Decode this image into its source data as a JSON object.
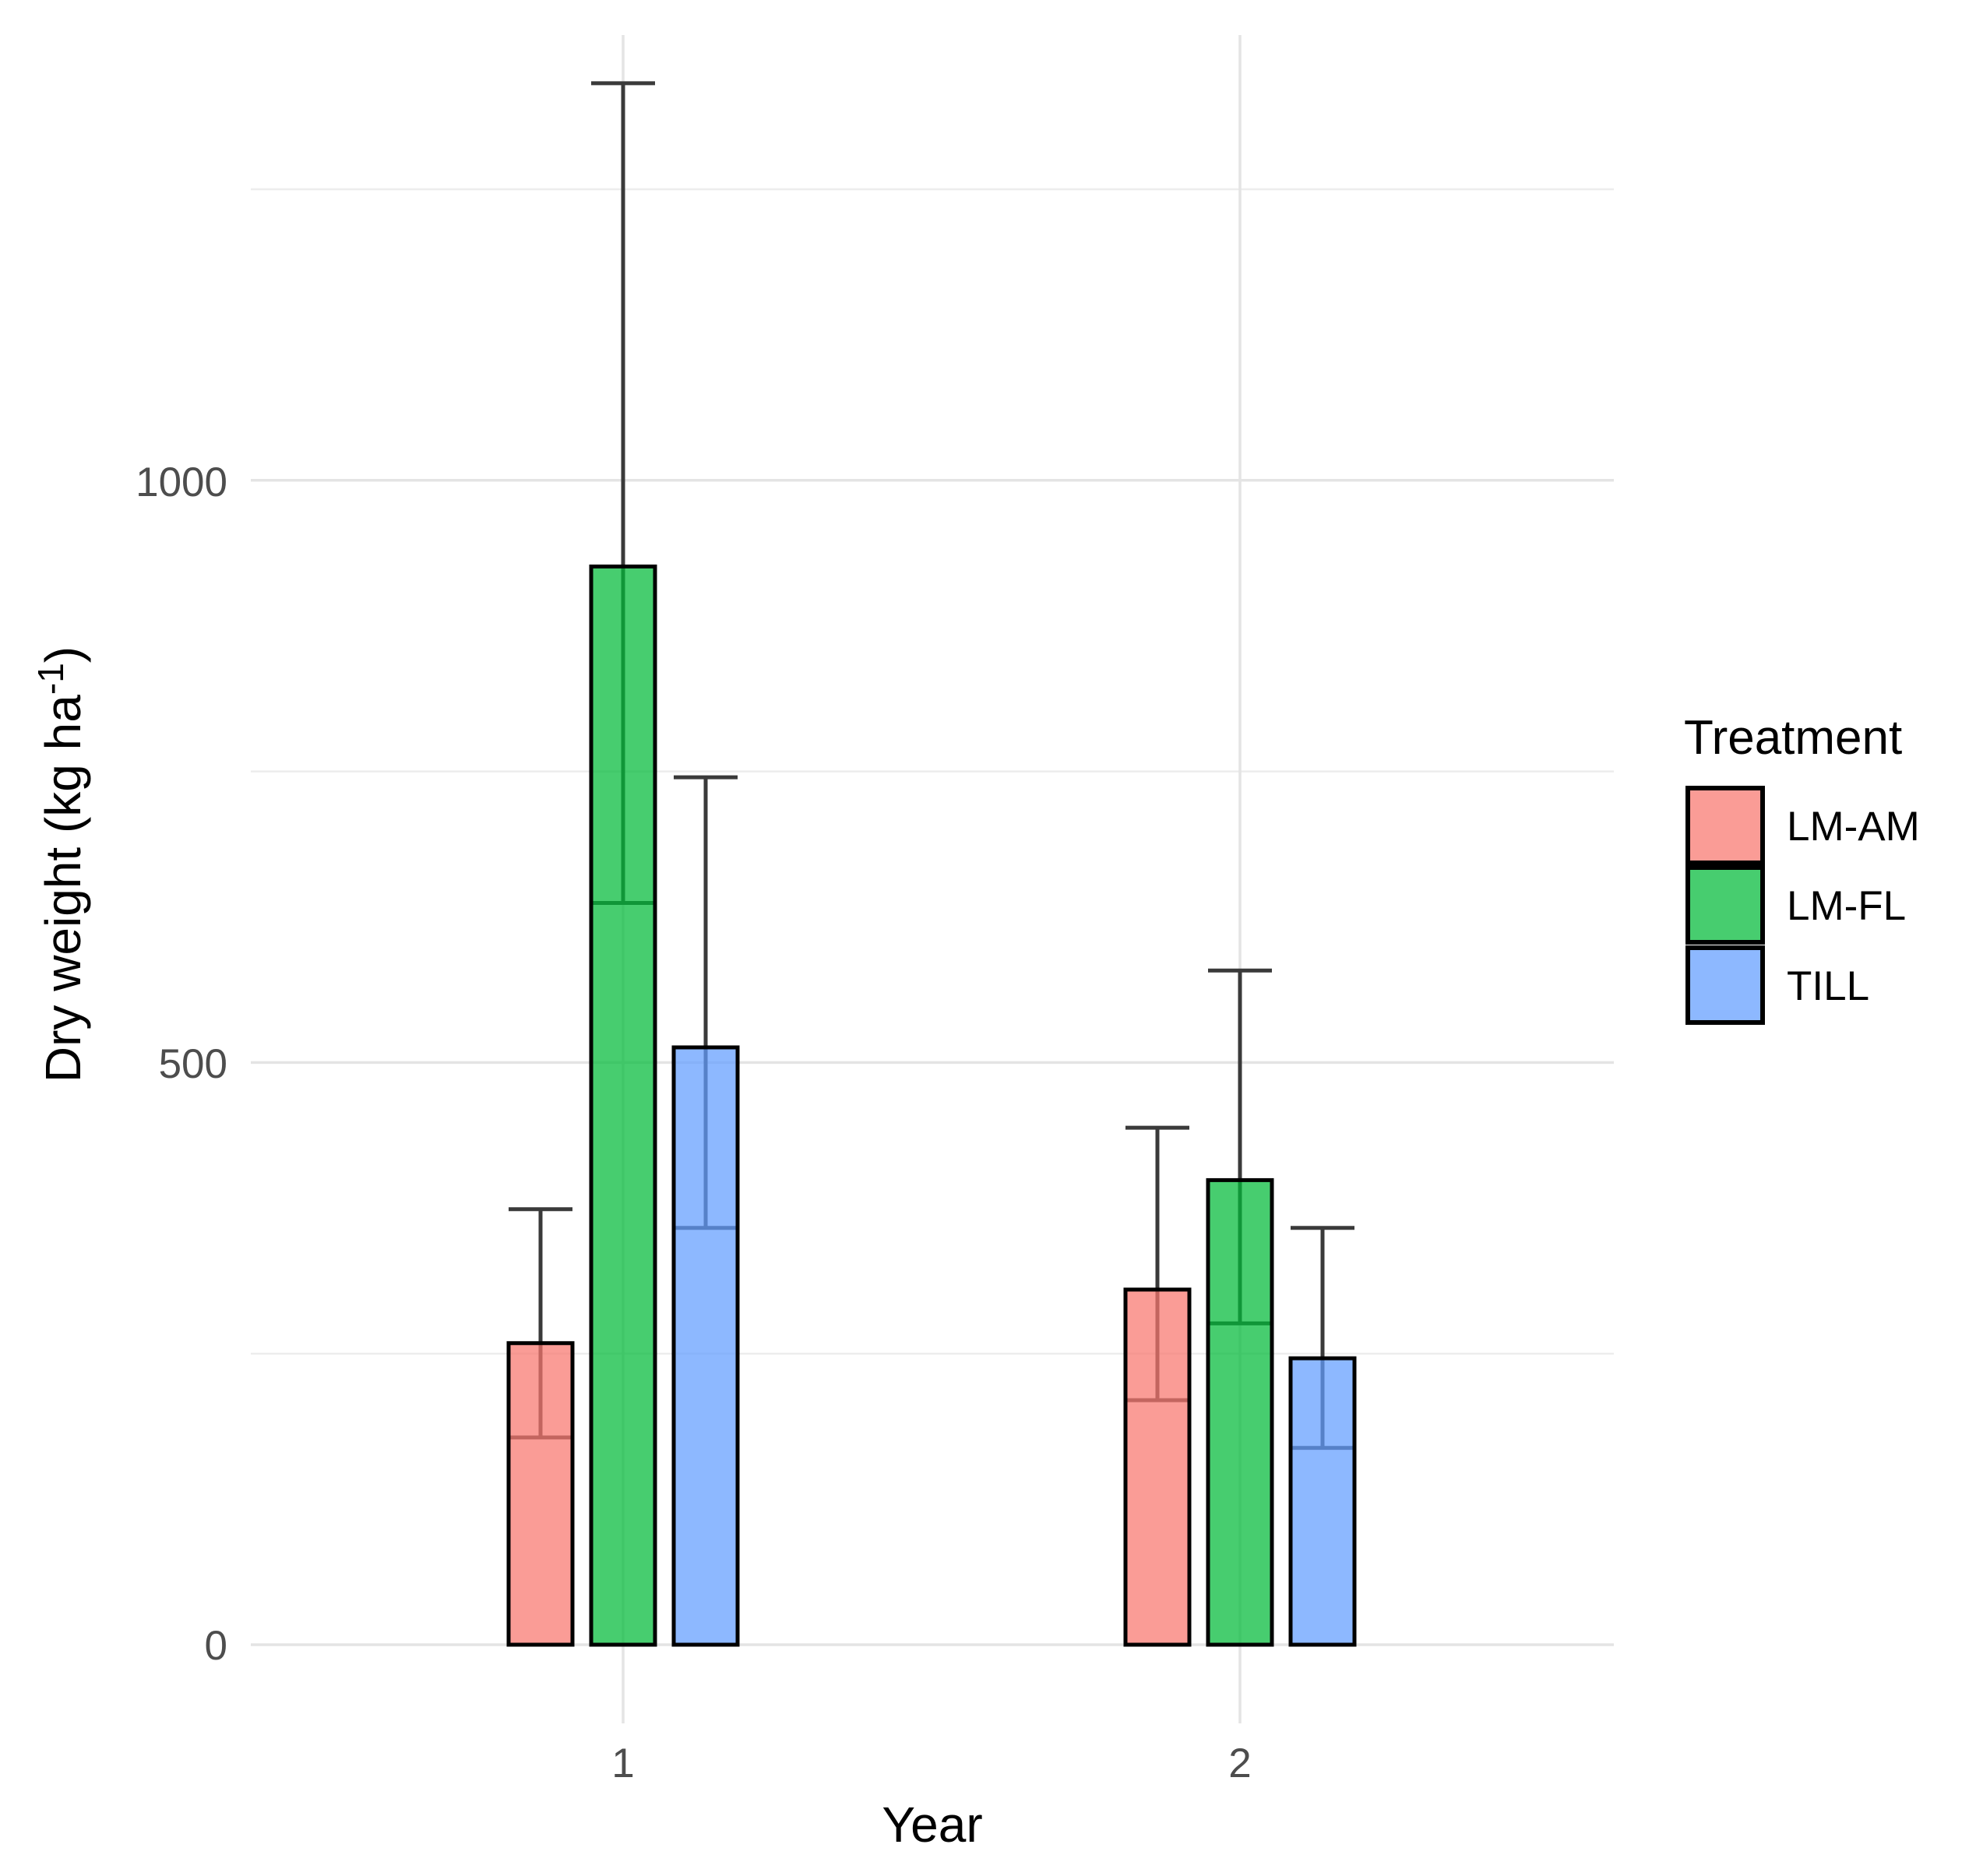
{
  "chart_data": {
    "type": "bar",
    "title": "",
    "xlabel": "Year",
    "ylabel": "Dry weight (kg ha⁻¹)",
    "ylabel_parts": {
      "main": "Dry weight (kg ha",
      "sup": "-1",
      "close": ")"
    },
    "categories": [
      "1",
      "2"
    ],
    "y_axis": {
      "ticks_major": [
        0,
        500,
        1000
      ],
      "ticks_minor": [
        250,
        750,
        1250
      ],
      "ylim": [
        -67,
        1408
      ],
      "grid": "on"
    },
    "legend": {
      "title": "Treatment",
      "position": "right"
    },
    "series": [
      {
        "name": "LM-AM",
        "fill": "#F8766D",
        "values": [
          259,
          305
        ],
        "ci_low": [
          178,
          210
        ],
        "ci_high": [
          374,
          444
        ]
      },
      {
        "name": "LM-FL",
        "fill": "#00BA38",
        "values": [
          926,
          399
        ],
        "ci_low": [
          637,
          276
        ],
        "ci_high": [
          1341,
          579
        ]
      },
      {
        "name": "TILL",
        "fill": "#619CFF",
        "values": [
          513,
          246
        ],
        "ci_low": [
          358,
          169
        ],
        "ci_high": [
          745,
          358
        ]
      }
    ],
    "style": {
      "bar_border_color": "#000000",
      "error_bar_color": "#3A3A3A",
      "fill_opacity": 0.72,
      "grid_major_color": "#E4E4E4",
      "grid_minor_color": "#EDEDED",
      "tick_label_color": "#4D4D4D"
    }
  }
}
